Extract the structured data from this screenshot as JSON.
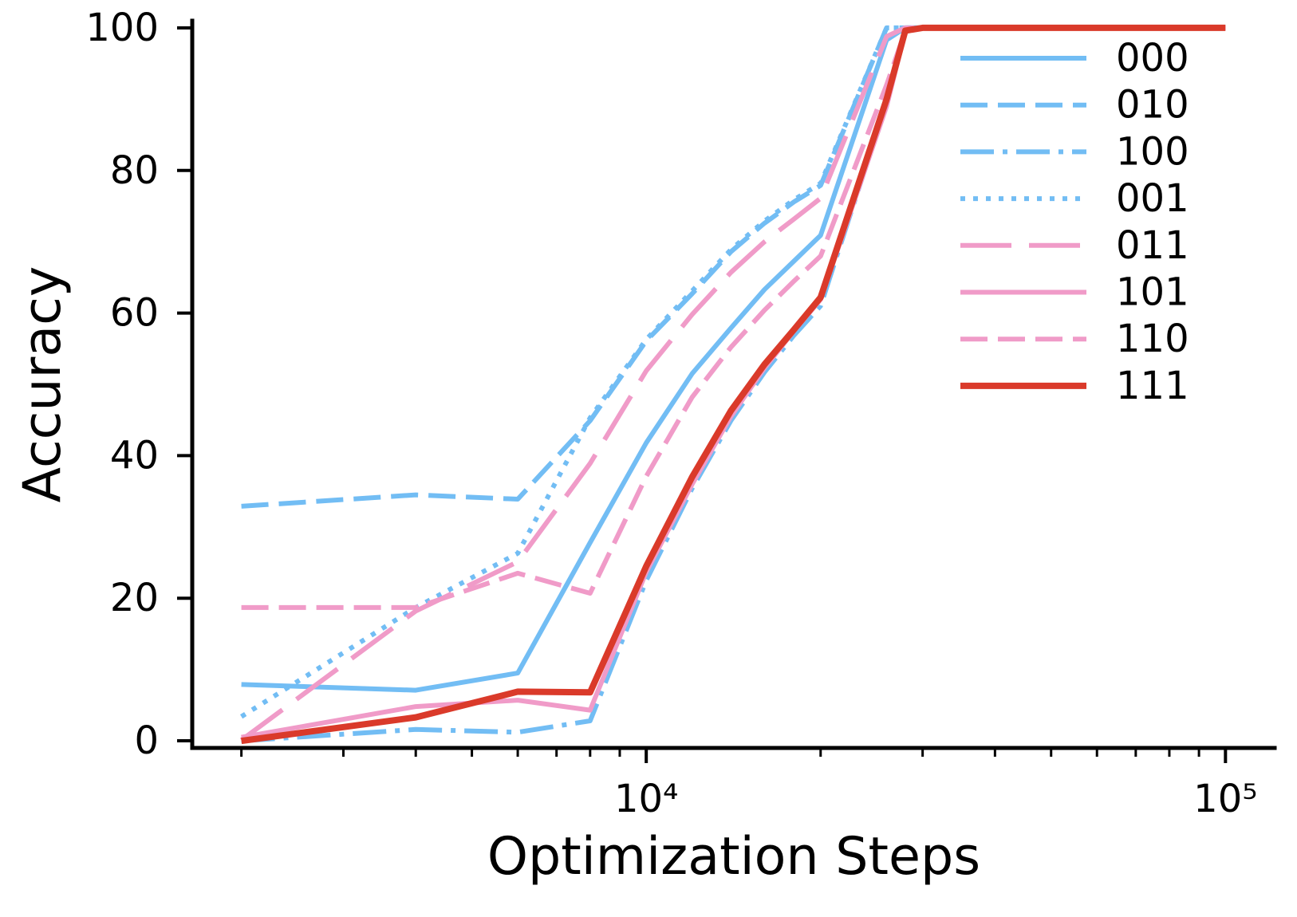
{
  "chart_data": {
    "type": "line",
    "xlabel": "Optimization Steps",
    "ylabel": "Accuracy",
    "x_scale": "log",
    "xlim": [
      1645,
      121600
    ],
    "ylim": [
      -1,
      101
    ],
    "grid": false,
    "legend_position": "top-right",
    "x_ticks": [
      {
        "value": 10000,
        "label": "10⁴"
      },
      {
        "value": 100000,
        "label": "10⁵"
      }
    ],
    "y_ticks": [
      {
        "value": 0,
        "label": "0"
      },
      {
        "value": 20,
        "label": "20"
      },
      {
        "value": 40,
        "label": "40"
      },
      {
        "value": 60,
        "label": "60"
      },
      {
        "value": 80,
        "label": "80"
      },
      {
        "value": 100,
        "label": "100"
      }
    ],
    "x": [
      2000,
      4000,
      6000,
      8000,
      10000,
      12000,
      14000,
      16000,
      18000,
      20000,
      26000,
      28000,
      30000,
      100000
    ],
    "series": [
      {
        "name": "000",
        "color": "#72BDF4",
        "linestyle": "solid",
        "values": [
          7.9,
          7.1,
          9.5,
          27.8,
          41.8,
          51.5,
          57.9,
          63.3,
          67.3,
          70.9,
          98.3,
          100,
          100,
          100
        ]
      },
      {
        "name": "010",
        "color": "#72BDF4",
        "linestyle": "dashed",
        "values": [
          32.9,
          34.5,
          33.9,
          44.9,
          56.1,
          62.7,
          68.6,
          72.6,
          75.6,
          77.9,
          100,
          100,
          100,
          100
        ]
      },
      {
        "name": "100",
        "color": "#72BDF4",
        "linestyle": "dashdot",
        "values": [
          0.0,
          1.6,
          1.2,
          2.8,
          22.5,
          35.4,
          44.9,
          51.7,
          56.9,
          61.0,
          89.5,
          99.5,
          100,
          100
        ]
      },
      {
        "name": "001",
        "color": "#72BDF4",
        "linestyle": "dotted",
        "values": [
          3.4,
          18.7,
          26.3,
          45.3,
          56.3,
          63.1,
          68.9,
          72.9,
          75.9,
          78.2,
          100,
          100,
          100,
          100
        ]
      },
      {
        "name": "011",
        "color": "#F09BC8",
        "linestyle": "longdash",
        "values": [
          0.1,
          18.2,
          25.1,
          38.9,
          51.9,
          59.8,
          65.7,
          70.0,
          73.2,
          76.1,
          98.8,
          100,
          100,
          100
        ]
      },
      {
        "name": "101",
        "color": "#F09BC8",
        "linestyle": "solid",
        "values": [
          0.5,
          4.8,
          5.7,
          4.3,
          23.7,
          36.0,
          45.5,
          52.3,
          57.5,
          61.9,
          89.0,
          99.5,
          100,
          100
        ]
      },
      {
        "name": "110",
        "color": "#F09BC8",
        "linestyle": "dashed",
        "values": [
          18.7,
          18.7,
          23.5,
          20.7,
          37.1,
          48.2,
          55.2,
          60.4,
          64.5,
          68.0,
          92.0,
          99.6,
          100,
          100
        ]
      },
      {
        "name": "111",
        "color": "#DA3A2A",
        "linestyle": "solid",
        "values": [
          0.0,
          3.3,
          6.9,
          6.8,
          24.5,
          37.0,
          46.3,
          52.8,
          57.7,
          62.2,
          90.0,
          99.6,
          100,
          100
        ]
      }
    ]
  }
}
